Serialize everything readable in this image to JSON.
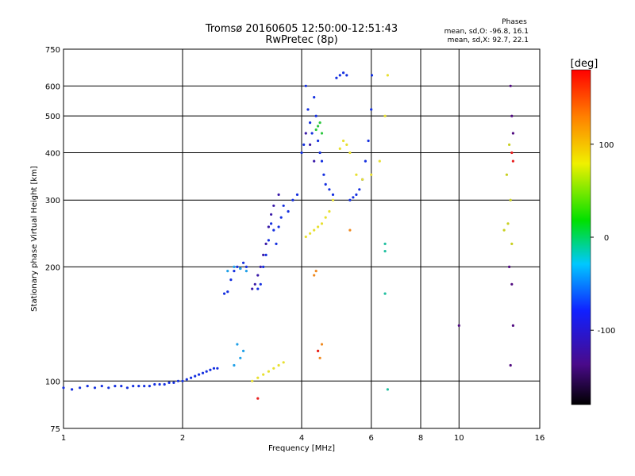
{
  "chart_data": {
    "type": "scatter",
    "title": "Tromsø 20160605 12:50:00-12:51:43",
    "subtitle": "RwPretec (8p)",
    "xlabel": "Frequency [MHz]",
    "ylabel": "Stationary phase Virtual Height [km]",
    "x_scale": "log",
    "y_scale": "log",
    "xlim": [
      1,
      16
    ],
    "ylim": [
      75,
      750
    ],
    "x_ticks": [
      1,
      2,
      4,
      6,
      8,
      10,
      16
    ],
    "y_ticks": [
      75,
      100,
      200,
      300,
      400,
      500,
      600,
      750
    ],
    "x_grid": [
      2,
      4,
      6,
      8,
      10
    ],
    "y_grid": [
      100,
      200,
      300,
      400,
      500,
      600
    ],
    "grid": true,
    "stats": {
      "heading": "Phases",
      "line_o": "mean, sd,O: -96.8, 16.1",
      "line_x": "mean, sd,X:  92.7, 22.1"
    },
    "colorbar": {
      "label": "[deg]",
      "range": [
        -180,
        180
      ],
      "ticks": [
        100,
        0,
        -100
      ],
      "colormap": "rainbow"
    },
    "series": [
      {
        "phase": -100,
        "color": "#1530e0",
        "points": [
          [
            1.0,
            96
          ],
          [
            1.05,
            95
          ],
          [
            1.1,
            96
          ],
          [
            1.15,
            97
          ],
          [
            1.2,
            96
          ],
          [
            1.25,
            97
          ],
          [
            1.3,
            96
          ],
          [
            1.35,
            97
          ],
          [
            1.4,
            97
          ],
          [
            1.45,
            96
          ],
          [
            1.5,
            97
          ],
          [
            1.55,
            97
          ],
          [
            1.6,
            97
          ],
          [
            1.65,
            97
          ],
          [
            1.7,
            98
          ],
          [
            1.75,
            98
          ],
          [
            1.8,
            98
          ],
          [
            1.85,
            99
          ],
          [
            1.9,
            99
          ],
          [
            1.95,
            100
          ],
          [
            2.0,
            100
          ],
          [
            2.05,
            101
          ],
          [
            2.1,
            102
          ],
          [
            2.15,
            103
          ],
          [
            2.2,
            104
          ],
          [
            2.25,
            105
          ],
          [
            2.3,
            106
          ],
          [
            2.35,
            107
          ],
          [
            2.4,
            108
          ],
          [
            2.45,
            108
          ],
          [
            2.55,
            170
          ],
          [
            2.6,
            172
          ],
          [
            2.65,
            185
          ],
          [
            2.7,
            195
          ],
          [
            2.75,
            200
          ],
          [
            2.8,
            198
          ],
          [
            2.85,
            205
          ],
          [
            2.9,
            200
          ],
          [
            3.1,
            175
          ],
          [
            3.15,
            180
          ],
          [
            3.2,
            200
          ],
          [
            3.25,
            215
          ],
          [
            3.3,
            235
          ],
          [
            3.35,
            260
          ],
          [
            3.4,
            250
          ],
          [
            3.45,
            230
          ],
          [
            3.5,
            255
          ],
          [
            3.55,
            270
          ],
          [
            3.6,
            290
          ],
          [
            3.7,
            280
          ],
          [
            3.8,
            300
          ],
          [
            3.9,
            310
          ],
          [
            4.0,
            400
          ],
          [
            4.05,
            420
          ],
          [
            4.1,
            600
          ],
          [
            4.15,
            520
          ],
          [
            4.2,
            480
          ],
          [
            4.25,
            450
          ],
          [
            4.3,
            560
          ],
          [
            4.35,
            500
          ],
          [
            4.4,
            430
          ],
          [
            4.45,
            400
          ],
          [
            4.5,
            380
          ],
          [
            4.55,
            350
          ],
          [
            4.6,
            330
          ],
          [
            4.7,
            320
          ],
          [
            4.8,
            310
          ],
          [
            4.9,
            630
          ],
          [
            5.0,
            640
          ],
          [
            5.1,
            650
          ],
          [
            5.2,
            640
          ],
          [
            5.3,
            300
          ],
          [
            5.4,
            305
          ],
          [
            5.5,
            310
          ],
          [
            5.6,
            320
          ],
          [
            5.7,
            340
          ],
          [
            5.8,
            380
          ],
          [
            5.9,
            430
          ],
          [
            6.0,
            520
          ],
          [
            6.02,
            640
          ]
        ]
      },
      {
        "phase": -130,
        "color": "#3a1aa8",
        "points": [
          [
            3.0,
            175
          ],
          [
            3.05,
            180
          ],
          [
            3.1,
            190
          ],
          [
            3.15,
            200
          ],
          [
            3.2,
            215
          ],
          [
            3.25,
            230
          ],
          [
            3.3,
            255
          ],
          [
            3.35,
            275
          ],
          [
            3.4,
            290
          ],
          [
            3.5,
            310
          ],
          [
            4.1,
            450
          ],
          [
            4.2,
            420
          ],
          [
            4.3,
            380
          ]
        ]
      },
      {
        "phase": -40,
        "color": "#1fa0e8",
        "points": [
          [
            2.6,
            195
          ],
          [
            2.7,
            200
          ],
          [
            2.8,
            198
          ],
          [
            2.9,
            195
          ],
          [
            2.7,
            110
          ],
          [
            2.75,
            125
          ],
          [
            2.8,
            115
          ],
          [
            2.85,
            120
          ]
        ]
      },
      {
        "phase": 100,
        "color": "#e8e030",
        "points": [
          [
            3.0,
            100
          ],
          [
            3.1,
            102
          ],
          [
            3.2,
            104
          ],
          [
            3.3,
            106
          ],
          [
            3.4,
            108
          ],
          [
            3.5,
            110
          ],
          [
            3.6,
            112
          ],
          [
            4.1,
            240
          ],
          [
            4.2,
            245
          ],
          [
            4.3,
            250
          ],
          [
            4.4,
            255
          ],
          [
            4.5,
            260
          ],
          [
            4.6,
            270
          ],
          [
            4.7,
            280
          ],
          [
            4.8,
            300
          ],
          [
            5.0,
            410
          ],
          [
            5.1,
            430
          ],
          [
            5.2,
            420
          ],
          [
            5.3,
            400
          ],
          [
            5.5,
            350
          ],
          [
            5.7,
            340
          ],
          [
            6.0,
            350
          ],
          [
            6.3,
            380
          ],
          [
            6.5,
            500
          ],
          [
            6.6,
            640
          ]
        ]
      },
      {
        "phase": 150,
        "color": "#f08a20",
        "points": [
          [
            4.3,
            190
          ],
          [
            4.35,
            195
          ],
          [
            4.4,
            120
          ],
          [
            4.5,
            125
          ],
          [
            4.45,
            115
          ],
          [
            5.3,
            250
          ]
        ]
      },
      {
        "phase": 40,
        "color": "#2ec840",
        "points": [
          [
            4.35,
            460
          ],
          [
            4.4,
            470
          ],
          [
            4.45,
            480
          ],
          [
            4.5,
            450
          ]
        ]
      },
      {
        "phase": 20,
        "color": "#20c0a0",
        "points": [
          [
            6.5,
            230
          ],
          [
            6.5,
            220
          ],
          [
            6.6,
            95
          ],
          [
            6.5,
            170
          ]
        ]
      },
      {
        "phase": 120,
        "color": "#c8d020",
        "points": [
          [
            13.0,
            250
          ],
          [
            13.3,
            260
          ],
          [
            13.5,
            300
          ],
          [
            13.6,
            230
          ],
          [
            13.2,
            350
          ],
          [
            13.4,
            420
          ]
        ]
      },
      {
        "phase": -150,
        "color": "#500a80",
        "points": [
          [
            13.5,
            600
          ],
          [
            13.6,
            500
          ],
          [
            13.7,
            450
          ],
          [
            13.4,
            200
          ],
          [
            13.6,
            180
          ],
          [
            13.7,
            140
          ],
          [
            13.5,
            110
          ],
          [
            10.0,
            140
          ]
        ]
      },
      {
        "phase": 170,
        "color": "#e82020",
        "points": [
          [
            13.6,
            400
          ],
          [
            13.7,
            380
          ],
          [
            4.4,
            120
          ],
          [
            3.1,
            90
          ]
        ]
      }
    ]
  }
}
